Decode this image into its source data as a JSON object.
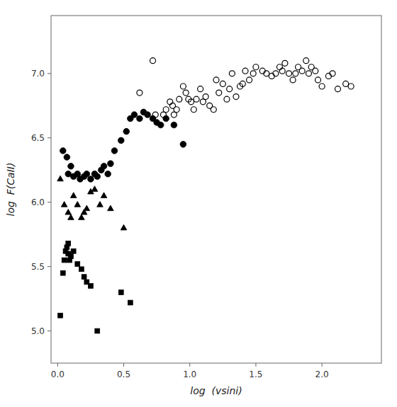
{
  "chart_data": {
    "type": "scatter",
    "xlabel": "log  (vsini)",
    "ylabel": "log  F(CaII)",
    "xlim": [
      -0.05,
      2.45
    ],
    "ylim": [
      4.75,
      7.45
    ],
    "xticks": [
      {
        "value": 0.0,
        "label": "0.0"
      },
      0.5,
      {
        "value": 1.0,
        "label": "1.0"
      },
      1.5,
      {
        "value": 2.0,
        "label": "2.0"
      }
    ],
    "yticks": [
      {
        "value": 5.0,
        "label": "5.0"
      },
      5.5,
      {
        "value": 6.0,
        "label": "6.0"
      },
      6.5,
      {
        "value": 7.0,
        "label": "7.0"
      }
    ],
    "series": [
      {
        "marker": "open-circle",
        "color": "#000000",
        "x": [
          0.62,
          0.72,
          0.74,
          0.8,
          0.82,
          0.85,
          0.87,
          0.88,
          0.9,
          0.92,
          0.95,
          0.97,
          0.99,
          1.01,
          1.03,
          1.05,
          1.08,
          1.1,
          1.12,
          1.15,
          1.18,
          1.2,
          1.22,
          1.25,
          1.28,
          1.3,
          1.32,
          1.35,
          1.38,
          1.4,
          1.42,
          1.45,
          1.48,
          1.5,
          1.55,
          1.58,
          1.62,
          1.65,
          1.68,
          1.7,
          1.72,
          1.75,
          1.78,
          1.8,
          1.82,
          1.85,
          1.88,
          1.9,
          1.92,
          1.95,
          1.97,
          2.0,
          2.05,
          2.08,
          2.12,
          2.18,
          2.22
        ],
        "values": [
          6.85,
          7.1,
          6.68,
          6.68,
          6.72,
          6.78,
          6.75,
          6.68,
          6.72,
          6.8,
          6.9,
          6.85,
          6.8,
          6.78,
          6.72,
          6.8,
          6.88,
          6.78,
          6.82,
          6.75,
          6.72,
          6.95,
          6.85,
          6.92,
          6.8,
          6.88,
          7.0,
          6.82,
          6.9,
          6.92,
          7.02,
          6.95,
          7.0,
          7.05,
          7.02,
          7.0,
          6.98,
          7.0,
          7.05,
          7.02,
          7.08,
          7.0,
          6.95,
          7.0,
          7.05,
          7.02,
          7.1,
          7.0,
          7.05,
          7.02,
          6.95,
          6.9,
          6.98,
          7.0,
          6.88,
          6.92,
          6.9
        ]
      },
      {
        "marker": "circle",
        "color": "#000000",
        "x": [
          0.04,
          0.07,
          0.08,
          0.1,
          0.12,
          0.15,
          0.17,
          0.2,
          0.22,
          0.25,
          0.28,
          0.3,
          0.33,
          0.35,
          0.38,
          0.4,
          0.43,
          0.48,
          0.52,
          0.55,
          0.58,
          0.62,
          0.65,
          0.68,
          0.72,
          0.75,
          0.78,
          0.82,
          0.88,
          0.95
        ],
        "values": [
          6.4,
          6.35,
          6.22,
          6.28,
          6.2,
          6.22,
          6.18,
          6.2,
          6.22,
          6.18,
          6.22,
          6.2,
          6.25,
          6.28,
          6.22,
          6.3,
          6.4,
          6.48,
          6.55,
          6.65,
          6.68,
          6.65,
          6.7,
          6.68,
          6.65,
          6.62,
          6.6,
          6.65,
          6.6,
          6.45
        ]
      },
      {
        "marker": "triangle",
        "color": "#000000",
        "x": [
          0.02,
          0.05,
          0.08,
          0.1,
          0.12,
          0.15,
          0.18,
          0.2,
          0.22,
          0.25,
          0.28,
          0.32,
          0.35,
          0.4,
          0.5
        ],
        "values": [
          6.18,
          5.98,
          5.92,
          5.88,
          6.05,
          5.98,
          5.88,
          5.92,
          5.95,
          6.08,
          6.1,
          5.98,
          6.05,
          5.95,
          5.8
        ]
      },
      {
        "marker": "square",
        "color": "#000000",
        "x": [
          0.02,
          0.04,
          0.05,
          0.06,
          0.07,
          0.08,
          0.08,
          0.09,
          0.1,
          0.12,
          0.15,
          0.18,
          0.2,
          0.22,
          0.25,
          0.3,
          0.48,
          0.55
        ],
        "values": [
          5.12,
          5.45,
          5.55,
          5.62,
          5.65,
          5.6,
          5.68,
          5.55,
          5.58,
          5.62,
          5.52,
          5.48,
          5.42,
          5.38,
          5.35,
          5.0,
          5.3,
          5.22
        ]
      }
    ]
  }
}
